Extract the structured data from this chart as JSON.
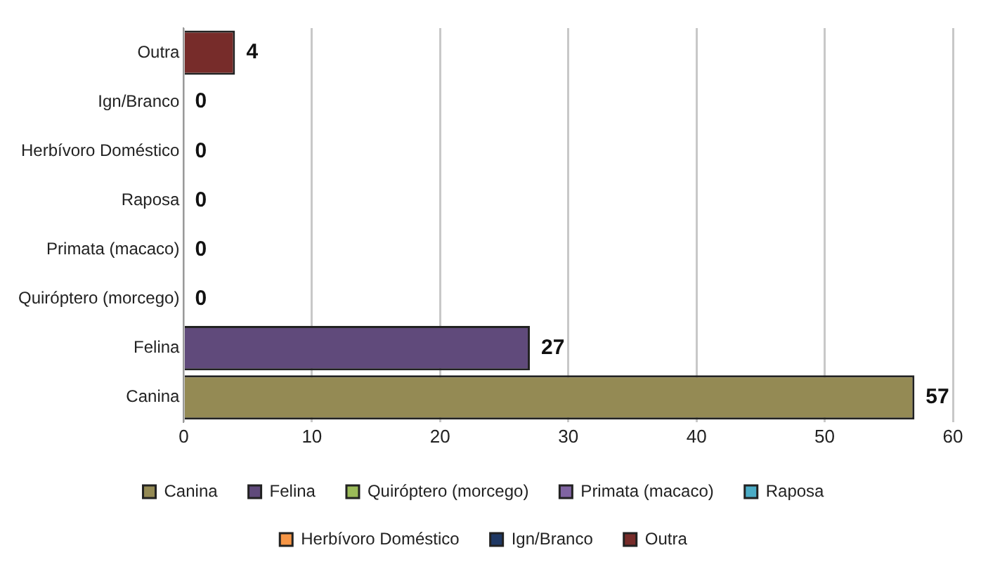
{
  "chart_data": {
    "type": "bar",
    "orientation": "horizontal",
    "categories": [
      "Outra",
      "Ign/Branco",
      "Herbívoro Doméstico",
      "Raposa",
      "Primata (macaco)",
      "Quiróptero (morcego)",
      "Felina",
      "Canina"
    ],
    "series": [
      {
        "name": "Canina",
        "color": "#948a54",
        "values": [
          null,
          null,
          null,
          null,
          null,
          null,
          null,
          57
        ]
      },
      {
        "name": "Felina",
        "color": "#604a7b",
        "values": [
          null,
          null,
          null,
          null,
          null,
          null,
          27,
          null
        ]
      },
      {
        "name": "Quiróptero (morcego)",
        "color": "#9bbb59",
        "values": [
          null,
          null,
          null,
          null,
          null,
          0,
          null,
          null
        ]
      },
      {
        "name": "Primata (macaco)",
        "color": "#8064a2",
        "values": [
          null,
          null,
          null,
          null,
          0,
          null,
          null,
          null
        ]
      },
      {
        "name": "Raposa",
        "color": "#4bacc6",
        "values": [
          null,
          null,
          null,
          0,
          null,
          null,
          null,
          null
        ]
      },
      {
        "name": "Herbívoro Doméstico",
        "color": "#f79646",
        "values": [
          null,
          null,
          0,
          null,
          null,
          null,
          null,
          null
        ]
      },
      {
        "name": "Ign/Branco",
        "color": "#1f3864",
        "values": [
          null,
          0,
          null,
          null,
          null,
          null,
          null,
          null
        ]
      },
      {
        "name": "Outra",
        "color": "#772c2a",
        "values": [
          4,
          null,
          null,
          null,
          null,
          null,
          null,
          null
        ]
      }
    ],
    "xlim": [
      0,
      60
    ],
    "xticks": [
      0,
      10,
      20,
      30,
      40,
      50,
      60
    ],
    "grid": "x",
    "legend": "bottom",
    "data_labels": true
  }
}
